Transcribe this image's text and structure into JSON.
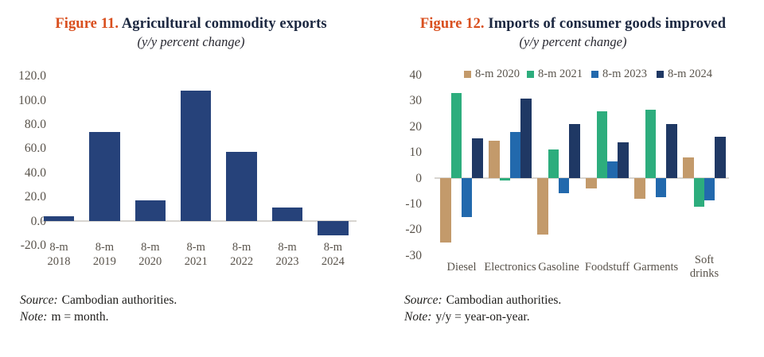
{
  "figure11": {
    "label": "Figure 11.",
    "title": "Agricultural commodity exports",
    "subtitle": "(y/y percent change)",
    "source_label": "Source:",
    "source_text": "Cambodian authorities.",
    "note_label": "Note:",
    "note_text": "m = month."
  },
  "figure12": {
    "label": "Figure 12.",
    "title": "Imports of consumer goods improved",
    "subtitle": "(y/y percent change)",
    "source_label": "Source:",
    "source_text": "Cambodian authorities.",
    "note_label": "Note:",
    "note_text": "y/y = year-on-year."
  },
  "colors": {
    "figure_label_orange": "#d94f1e",
    "title_navy": "#1b2740",
    "left_bar_navy": "#26427a",
    "series_2020_tan": "#c39a6b",
    "series_2021_green": "#2dad7d",
    "series_2023_blue": "#2269ad",
    "series_2024_navy": "#1f3864",
    "axis_line_gray": "#d8d5d0",
    "tick_text_gray": "#58524a"
  },
  "chart_data": [
    {
      "type": "bar",
      "title": "Figure 11. Agricultural commodity exports",
      "subtitle": "(y/y percent change)",
      "categories": [
        "8-m 2018",
        "8-m 2019",
        "8-m 2020",
        "8-m 2021",
        "8-m 2022",
        "8-m 2023",
        "8-m 2024"
      ],
      "values": [
        4,
        74,
        17,
        108,
        57,
        11,
        -12
      ],
      "bar_color": "#26427a",
      "xlabel": "",
      "ylabel": "",
      "ylim": [
        -20,
        120
      ],
      "yticks": [
        120,
        100,
        80,
        60,
        40,
        20,
        0,
        -20
      ],
      "ytick_format": "1dp",
      "grid": false,
      "legend_position": "none"
    },
    {
      "type": "bar",
      "title": "Figure 12. Imports of consumer goods improved",
      "subtitle": "(y/y percent change)",
      "categories": [
        "Diesel",
        "Electronics",
        "Gasoline",
        "Foodstuff",
        "Garments",
        "Soft drinks"
      ],
      "series": [
        {
          "name": "8-m 2020",
          "color": "#c39a6b",
          "values": [
            -25,
            14.5,
            -22,
            -4,
            -8,
            8
          ]
        },
        {
          "name": "8-m 2021",
          "color": "#2dad7d",
          "values": [
            33,
            -1,
            11,
            26,
            26.5,
            -11
          ]
        },
        {
          "name": "8-m 2023",
          "color": "#2269ad",
          "values": [
            -15,
            18,
            -6,
            6.5,
            -7.5,
            -8.5
          ]
        },
        {
          "name": "8-m 2024",
          "color": "#1f3864",
          "values": [
            15.5,
            31,
            21,
            14,
            21,
            16
          ]
        }
      ],
      "xlabel": "",
      "ylabel": "",
      "ylim": [
        -30,
        40
      ],
      "yticks": [
        40,
        30,
        20,
        10,
        0,
        -10,
        -20,
        -30
      ],
      "ytick_format": "int",
      "grid": false,
      "legend_position": "top"
    }
  ]
}
